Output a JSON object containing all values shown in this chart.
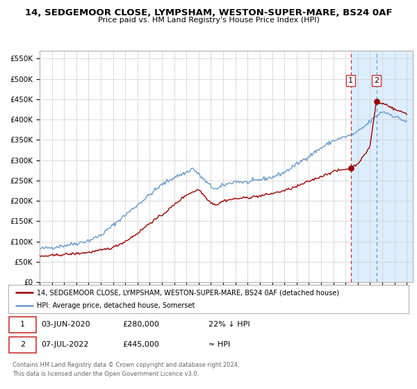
{
  "title": "14, SEDGEMOOR CLOSE, LYMPSHAM, WESTON-SUPER-MARE, BS24 0AF",
  "subtitle": "Price paid vs. HM Land Registry's House Price Index (HPI)",
  "ylabel_ticks": [
    "£0",
    "£50K",
    "£100K",
    "£150K",
    "£200K",
    "£250K",
    "£300K",
    "£350K",
    "£400K",
    "£450K",
    "£500K",
    "£550K"
  ],
  "ytick_values": [
    0,
    50000,
    100000,
    150000,
    200000,
    250000,
    300000,
    350000,
    400000,
    450000,
    500000,
    550000
  ],
  "ylim": [
    0,
    570000
  ],
  "xlim_start": 1995.0,
  "xlim_end": 2025.5,
  "hpi_color": "#6699cc",
  "price_color": "#990000",
  "shaded_region_color": "#ddeeff",
  "marker1_date": 2020.42,
  "marker2_date": 2022.52,
  "marker1_price": 280000,
  "marker2_price": 445000,
  "dashed1_color": "#cc3333",
  "dashed2_color": "#6699cc",
  "legend_line1": "14, SEDGEMOOR CLOSE, LYMPSHAM, WESTON-SUPER-MARE, BS24 0AF (detached house)",
  "legend_line2": "HPI: Average price, detached house, Somerset",
  "annotation1_date": "03-JUN-2020",
  "annotation1_price": "£280,000",
  "annotation1_rel": "22% ↓ HPI",
  "annotation2_date": "07-JUL-2022",
  "annotation2_price": "£445,000",
  "annotation2_rel": "≈ HPI",
  "footer1": "Contains HM Land Registry data © Crown copyright and database right 2024.",
  "footer2": "This data is licensed under the Open Government Licence v3.0.",
  "bg_color": "#f0f4fa",
  "grid_color": "#cccccc"
}
